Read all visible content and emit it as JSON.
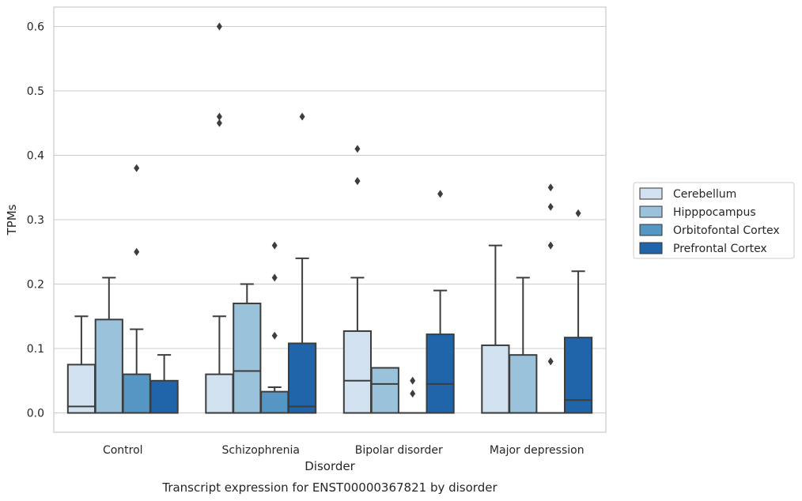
{
  "chart_data": {
    "type": "boxplot",
    "caption": "Transcript expression for ENST00000367821 by disorder",
    "xlabel": "Disorder",
    "ylabel": "TPMs",
    "ylim": [
      -0.03,
      0.63
    ],
    "yticks": [
      0.0,
      0.1,
      0.2,
      0.3,
      0.4,
      0.5,
      0.6
    ],
    "ytick_labels": [
      "0.0",
      "0.1",
      "0.2",
      "0.3",
      "0.4",
      "0.5",
      "0.6"
    ],
    "grid": "horizontal",
    "legend_position": "right",
    "categories": [
      "Control",
      "Schizophrenia",
      "Bipolar disorder",
      "Major depression"
    ],
    "series": [
      {
        "name": "Cerebellum",
        "color": "#d1e1ef",
        "boxes": [
          {
            "q1": 0.0,
            "median": 0.01,
            "q3": 0.075,
            "whisker_low": 0.0,
            "whisker_high": 0.15,
            "outliers": []
          },
          {
            "q1": 0.0,
            "median": 0.0,
            "q3": 0.06,
            "whisker_low": 0.0,
            "whisker_high": 0.15,
            "outliers": [
              0.6,
              0.46,
              0.45
            ]
          },
          {
            "q1": 0.0,
            "median": 0.05,
            "q3": 0.127,
            "whisker_low": 0.0,
            "whisker_high": 0.21,
            "outliers": [
              0.41,
              0.36,
              0.36
            ]
          },
          {
            "q1": 0.0,
            "median": 0.0,
            "q3": 0.105,
            "whisker_low": 0.0,
            "whisker_high": 0.26,
            "outliers": []
          }
        ]
      },
      {
        "name": "Hipppocampus",
        "color": "#9ac3db",
        "boxes": [
          {
            "q1": 0.0,
            "median": 0.0,
            "q3": 0.145,
            "whisker_low": 0.0,
            "whisker_high": 0.21,
            "outliers": []
          },
          {
            "q1": 0.0,
            "median": 0.065,
            "q3": 0.17,
            "whisker_low": 0.0,
            "whisker_high": 0.2,
            "outliers": []
          },
          {
            "q1": 0.0,
            "median": 0.045,
            "q3": 0.07,
            "whisker_low": 0.0,
            "whisker_high": 0.07,
            "outliers": []
          },
          {
            "q1": 0.0,
            "median": 0.0,
            "q3": 0.09,
            "whisker_low": 0.0,
            "whisker_high": 0.21,
            "outliers": []
          }
        ]
      },
      {
        "name": "Orbitofontal Cortex",
        "color": "#5696c4",
        "boxes": [
          {
            "q1": 0.0,
            "median": 0.0,
            "q3": 0.06,
            "whisker_low": 0.0,
            "whisker_high": 0.13,
            "outliers": [
              0.38,
              0.25
            ]
          },
          {
            "q1": 0.0,
            "median": 0.0,
            "q3": 0.033,
            "whisker_low": 0.0,
            "whisker_high": 0.04,
            "outliers": [
              0.26,
              0.21,
              0.12
            ]
          },
          {
            "q1": 0.0,
            "median": 0.0,
            "q3": 0.0,
            "whisker_low": 0.0,
            "whisker_high": 0.0,
            "outliers": [
              0.05,
              0.03
            ]
          },
          {
            "q1": 0.0,
            "median": 0.0,
            "q3": 0.0,
            "whisker_low": 0.0,
            "whisker_high": 0.0,
            "outliers": [
              0.35,
              0.32,
              0.26,
              0.08
            ]
          }
        ]
      },
      {
        "name": "Prefrontal Cortex",
        "color": "#2064aa",
        "boxes": [
          {
            "q1": 0.0,
            "median": 0.0,
            "q3": 0.05,
            "whisker_low": 0.0,
            "whisker_high": 0.09,
            "outliers": []
          },
          {
            "q1": 0.0,
            "median": 0.01,
            "q3": 0.108,
            "whisker_low": 0.0,
            "whisker_high": 0.24,
            "outliers": [
              0.46
            ]
          },
          {
            "q1": 0.0,
            "median": 0.045,
            "q3": 0.122,
            "whisker_low": 0.0,
            "whisker_high": 0.19,
            "outliers": [
              0.34
            ]
          },
          {
            "q1": 0.0,
            "median": 0.02,
            "q3": 0.117,
            "whisker_low": 0.0,
            "whisker_high": 0.22,
            "outliers": [
              0.31
            ]
          }
        ]
      }
    ]
  }
}
